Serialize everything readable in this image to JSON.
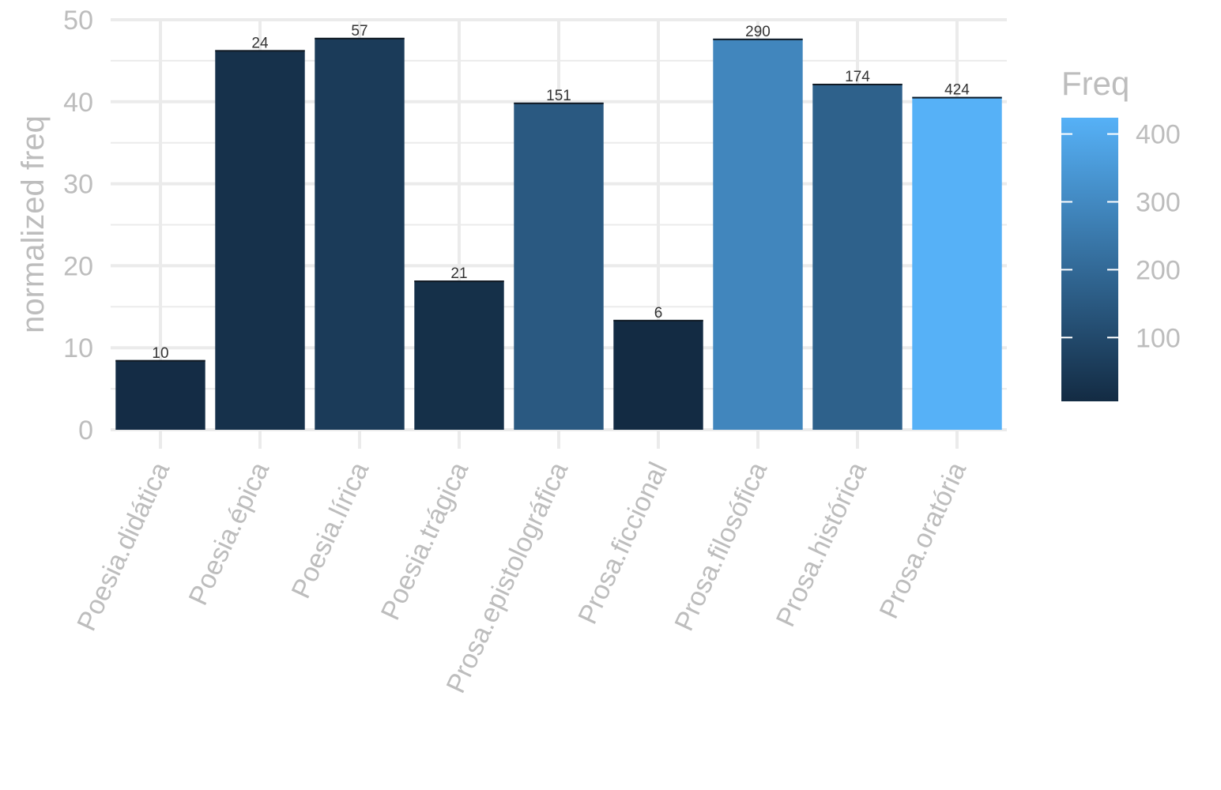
{
  "chart_data": {
    "type": "bar",
    "title": "",
    "xlabel": "",
    "ylabel": "normalized freq",
    "categories": [
      "Poesia.didática",
      "Poesia.épica",
      "Poesia.lírica",
      "Poesia.trágica",
      "Prosa.epistolográfica",
      "Prosa.ficcional",
      "Prosa.filosófica",
      "Prosa.histórica",
      "Prosa.oratória"
    ],
    "values": [
      8.5,
      46.3,
      47.8,
      18.2,
      39.9,
      13.4,
      47.7,
      42.2,
      40.6
    ],
    "bar_labels": [
      "10",
      "24",
      "57",
      "21",
      "151",
      "6",
      "290",
      "174",
      "424"
    ],
    "fill_values": [
      10,
      24,
      57,
      21,
      151,
      6,
      290,
      174,
      424
    ],
    "ylim": [
      0,
      50
    ],
    "y_ticks": [
      "0",
      "10",
      "20",
      "30",
      "40",
      "50"
    ],
    "grid": true,
    "legend": {
      "title": "Freq",
      "placement": "right",
      "ticks": [
        "100",
        "200",
        "300",
        "400"
      ],
      "range": [
        6,
        424
      ],
      "color_low": "#132b43",
      "color_high": "#56b1f7"
    }
  }
}
